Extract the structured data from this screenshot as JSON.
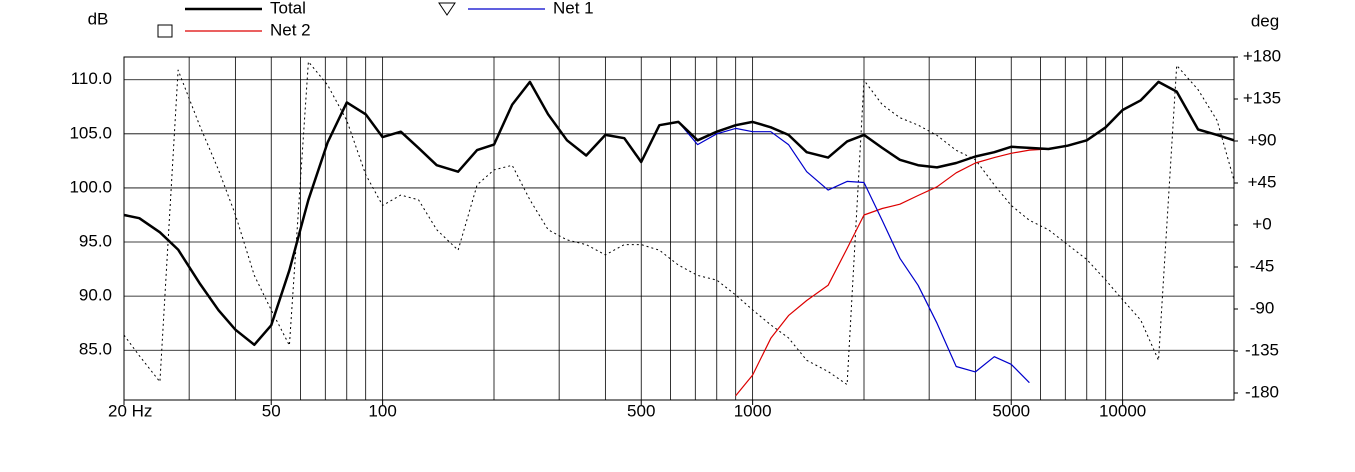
{
  "chart_data": {
    "type": "line",
    "y_label": "dB",
    "y2_label": "deg",
    "xscale": "log",
    "xlim": [
      20,
      20000
    ],
    "xticks": [
      {
        "value": 20,
        "label": "20 Hz"
      },
      50,
      100,
      500,
      1000,
      5000,
      10000
    ],
    "x_grid_lines": [
      30,
      40,
      50,
      60,
      70,
      80,
      90,
      100,
      200,
      300,
      400,
      500,
      600,
      700,
      800,
      900,
      1000,
      2000,
      3000,
      4000,
      5000,
      6000,
      7000,
      8000,
      9000,
      10000
    ],
    "ylim": [
      80.4,
      112.1
    ],
    "yticks": [
      {
        "value": 110,
        "label": "110.0"
      },
      {
        "value": 105,
        "label": "105.0"
      },
      {
        "value": 100,
        "label": "100.0"
      },
      {
        "value": 95,
        "label": "95.0"
      },
      {
        "value": 90,
        "label": "90.0"
      },
      {
        "value": 85,
        "label": "85.0"
      }
    ],
    "y2lim": [
      -187.5,
      180
    ],
    "y2ticks": [
      {
        "value": 180,
        "label": "+180"
      },
      {
        "value": 135,
        "label": "+135"
      },
      {
        "value": 90,
        "label": "+90"
      },
      {
        "value": 45,
        "label": "+45"
      },
      {
        "value": 0,
        "label": "+0"
      },
      -45,
      -90,
      -135,
      -180
    ],
    "grid": true,
    "x": [
      20,
      22,
      25,
      28,
      32,
      36,
      40,
      45,
      50,
      56,
      63,
      71,
      80,
      90,
      100,
      112,
      125,
      140,
      160,
      180,
      200,
      224,
      250,
      280,
      315,
      355,
      400,
      450,
      500,
      560,
      630,
      710,
      800,
      900,
      1000,
      1120,
      1250,
      1400,
      1600,
      1800,
      2000,
      2240,
      2500,
      2800,
      3150,
      3550,
      4000,
      4500,
      5000,
      5600,
      6300,
      7100,
      8000,
      9000,
      10000,
      11200,
      12500,
      14000,
      16000,
      18000,
      20000
    ],
    "series": [
      {
        "name": "Total",
        "color": "#000000",
        "width": 2.5,
        "values": [
          97.5,
          97.2,
          95.9,
          94.3,
          91.2,
          88.7,
          86.9,
          85.5,
          87.3,
          92.4,
          98.9,
          104.2,
          107.9,
          106.8,
          104.7,
          105.2,
          103.7,
          102.1,
          101.5,
          103.5,
          104,
          107.7,
          109.8,
          106.8,
          104.4,
          103,
          104.9,
          104.6,
          102.4,
          105.8,
          106.1,
          104.4,
          105.2,
          105.8,
          106.1,
          105.6,
          104.9,
          103.3,
          102.8,
          104.3,
          104.9,
          103.7,
          102.6,
          102.1,
          101.9,
          102.3,
          102.9,
          103.3,
          103.8,
          103.7,
          103.6,
          103.9,
          104.4,
          105.6,
          107.2,
          108.1,
          109.8,
          108.9,
          105.4,
          104.9,
          104.4
        ]
      },
      {
        "name": "Net 1",
        "color": "#0000cc",
        "width": 1.2,
        "marker": "triangle",
        "values": [
          97.5,
          97.2,
          95.9,
          94.3,
          91.2,
          88.7,
          86.9,
          85.5,
          87.3,
          92.4,
          98.9,
          104.2,
          107.9,
          106.8,
          104.7,
          105.2,
          103.7,
          102.1,
          101.5,
          103.5,
          104,
          107.7,
          109.8,
          106.8,
          104.4,
          103,
          104.9,
          104.6,
          102.4,
          105.8,
          106.1,
          104,
          105,
          105.5,
          105.2,
          105.2,
          104,
          101.5,
          99.8,
          100.6,
          100.5,
          97,
          93.5,
          91,
          87.5,
          83.5,
          83,
          84.4,
          83.7,
          82,
          null,
          null,
          null,
          null,
          null,
          null,
          null,
          null,
          null,
          null,
          null
        ]
      },
      {
        "name": "Net 2",
        "color": "#dd0000",
        "width": 1.2,
        "marker": "square",
        "values": [
          null,
          null,
          null,
          null,
          null,
          null,
          null,
          null,
          null,
          null,
          null,
          null,
          null,
          null,
          null,
          null,
          null,
          null,
          null,
          null,
          null,
          null,
          null,
          null,
          null,
          null,
          null,
          null,
          null,
          null,
          null,
          null,
          null,
          80.8,
          82.7,
          86.1,
          88.2,
          89.6,
          91,
          94.4,
          97.5,
          98.1,
          98.5,
          99.3,
          100.1,
          101.4,
          102.3,
          102.8,
          103.2,
          103.5,
          103.6,
          103.9,
          104.4,
          105.6,
          107.2,
          108.1,
          109.8,
          108.9,
          105.4,
          104.9,
          104.4
        ]
      },
      {
        "axis": "y2",
        "color": "#000000",
        "width": 1,
        "line_style": "dotted",
        "values": [
          -118,
          -140,
          -168,
          166,
          107,
          59,
          11,
          -54,
          -91,
          -129,
          175,
          150,
          112,
          54,
          21,
          32,
          27,
          -5,
          -27,
          43,
          59,
          64,
          27,
          -5,
          -16,
          -21,
          -32,
          -21,
          -21,
          -27,
          -43,
          -54,
          -59,
          -75,
          -91,
          -107,
          -121,
          -145,
          -157,
          -171,
          155,
          129,
          115,
          107,
          96,
          80,
          70,
          43,
          21,
          5,
          -5,
          -21,
          -37,
          -59,
          -80,
          -102,
          -145,
          171,
          145,
          112,
          48
        ]
      }
    ]
  }
}
